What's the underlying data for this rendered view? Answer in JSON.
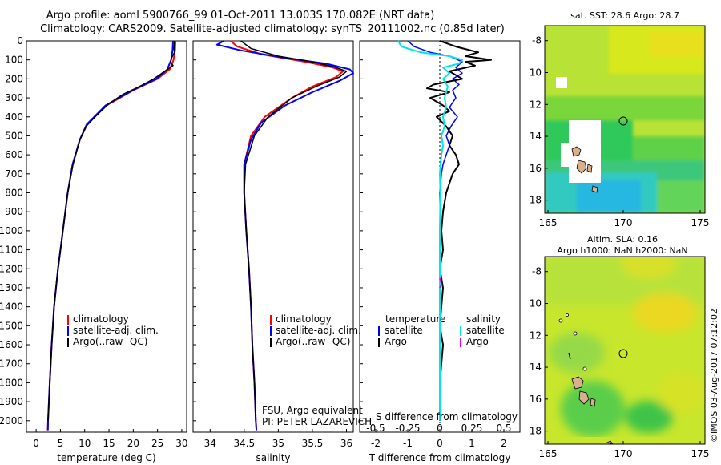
{
  "title": {
    "line1": "Argo profile: aoml 5900766_99 01-Oct-2011 13.003S 170.082E (NRT data)",
    "line2": "Climatology: CARS2009. Satellite-adjusted climatology: synTS_20111002.nc (0.85d later)"
  },
  "pressure_ticks": [
    0,
    100,
    200,
    300,
    400,
    500,
    600,
    700,
    800,
    900,
    1000,
    1100,
    1200,
    1300,
    1400,
    1500,
    1600,
    1700,
    1800,
    1900,
    2000
  ],
  "colors": {
    "climatology": "#ff0000",
    "satellite": "#0000ff",
    "argo": "#000000",
    "sat_diff_s": "#00e6e6",
    "argo_diff_s": "#e600e6"
  },
  "chart_data": [
    {
      "type": "line",
      "id": "temperature",
      "xlabel": "temperature (deg C)",
      "ylabel": "",
      "xlim": [
        -2,
        31
      ],
      "ylim": [
        2060,
        0
      ],
      "xticks": [
        0,
        5,
        10,
        15,
        20,
        25,
        30
      ],
      "xtick_labels": [
        "0",
        "5",
        "10",
        "15",
        "20",
        "25",
        "30"
      ],
      "legend": [
        "climatology",
        "satellite-adj. clim.",
        "Argo(..raw -QC)"
      ],
      "series": [
        {
          "name": "climatology",
          "color": "#ff0000",
          "width": 2,
          "points": [
            [
              28.7,
              0
            ],
            [
              28.6,
              50
            ],
            [
              28.3,
              100
            ],
            [
              27.5,
              150
            ],
            [
              25,
              200
            ],
            [
              20,
              260
            ],
            [
              14.5,
              340
            ],
            [
              10.5,
              440
            ],
            [
              9,
              520
            ],
            [
              7.5,
              650
            ],
            [
              6.5,
              800
            ],
            [
              5.5,
              1000
            ],
            [
              4.5,
              1200
            ],
            [
              3.7,
              1400
            ],
            [
              3.2,
              1600
            ],
            [
              2.8,
              1800
            ],
            [
              2.45,
              2000
            ],
            [
              2.4,
              2050
            ]
          ]
        },
        {
          "name": "satellite-adj. clim.",
          "color": "#0000ff",
          "width": 2,
          "points": [
            [
              28.2,
              0
            ],
            [
              28.1,
              50
            ],
            [
              27.8,
              100
            ],
            [
              27,
              150
            ],
            [
              24.8,
              200
            ],
            [
              19.8,
              260
            ],
            [
              14.3,
              340
            ],
            [
              10.4,
              440
            ],
            [
              9,
              520
            ],
            [
              7.5,
              650
            ],
            [
              6.5,
              800
            ],
            [
              5.5,
              1000
            ],
            [
              4.5,
              1200
            ],
            [
              3.7,
              1400
            ],
            [
              3.2,
              1600
            ],
            [
              2.8,
              1800
            ],
            [
              2.45,
              2000
            ],
            [
              2.4,
              2050
            ]
          ]
        },
        {
          "name": "Argo(..raw -QC)",
          "color": "#000000",
          "width": 1.5,
          "points": [
            [
              28.5,
              0
            ],
            [
              28.4,
              40
            ],
            [
              28.5,
              60
            ],
            [
              27.9,
              90
            ],
            [
              27.7,
              110
            ],
            [
              28.2,
              130
            ],
            [
              26.5,
              160
            ],
            [
              24.2,
              200
            ],
            [
              22,
              230
            ],
            [
              20.5,
              250
            ],
            [
              18,
              280
            ],
            [
              15,
              330
            ],
            [
              12.5,
              390
            ],
            [
              10.3,
              450
            ],
            [
              9,
              520
            ],
            [
              7.6,
              650
            ],
            [
              6.5,
              800
            ],
            [
              5.5,
              1000
            ],
            [
              4.5,
              1200
            ],
            [
              3.7,
              1400
            ],
            [
              3.2,
              1600
            ],
            [
              2.8,
              1800
            ],
            [
              2.45,
              2000
            ]
          ]
        }
      ]
    },
    {
      "type": "line",
      "id": "salinity",
      "xlabel": "salinity",
      "ylabel": "",
      "xlim": [
        33.75,
        36.1
      ],
      "ylim": [
        2060,
        0
      ],
      "xticks": [
        34,
        34.5,
        35,
        35.5,
        36
      ],
      "xtick_labels": [
        "34",
        "34.5",
        "35",
        "35.5",
        "36"
      ],
      "legend": [
        "climatology",
        "satellite-adj. clim.",
        "Argo(..raw -QC)"
      ],
      "series": [
        {
          "name": "climatology",
          "color": "#ff0000",
          "width": 2,
          "points": [
            [
              34.3,
              0
            ],
            [
              34.4,
              30
            ],
            [
              34.75,
              70
            ],
            [
              35.4,
              110
            ],
            [
              35.8,
              140
            ],
            [
              35.95,
              160
            ],
            [
              35.85,
              190
            ],
            [
              35.5,
              240
            ],
            [
              35.2,
              300
            ],
            [
              34.8,
              400
            ],
            [
              34.6,
              500
            ],
            [
              34.5,
              650
            ],
            [
              34.5,
              800
            ],
            [
              34.53,
              1000
            ],
            [
              34.57,
              1200
            ],
            [
              34.6,
              1400
            ],
            [
              34.62,
              1600
            ],
            [
              34.65,
              1800
            ],
            [
              34.67,
              2000
            ],
            [
              34.68,
              2050
            ]
          ]
        },
        {
          "name": "satellite-adj. clim.",
          "color": "#0000ff",
          "width": 2,
          "points": [
            [
              34.2,
              0
            ],
            [
              34.1,
              20
            ],
            [
              34.45,
              50
            ],
            [
              35.1,
              90
            ],
            [
              35.7,
              120
            ],
            [
              36.05,
              150
            ],
            [
              36.1,
              170
            ],
            [
              35.9,
              210
            ],
            [
              35.5,
              270
            ],
            [
              35.1,
              340
            ],
            [
              34.75,
              430
            ],
            [
              34.6,
              520
            ],
            [
              34.5,
              650
            ],
            [
              34.5,
              800
            ],
            [
              34.53,
              1000
            ],
            [
              34.57,
              1200
            ],
            [
              34.6,
              1400
            ],
            [
              34.62,
              1600
            ],
            [
              34.65,
              1800
            ],
            [
              34.67,
              2000
            ],
            [
              34.68,
              2050
            ]
          ]
        },
        {
          "name": "Argo(..raw -QC)",
          "color": "#000000",
          "width": 1.5,
          "points": [
            [
              34.45,
              0
            ],
            [
              34.6,
              40
            ],
            [
              35,
              80
            ],
            [
              35.5,
              110
            ],
            [
              35.85,
              140
            ],
            [
              36,
              160
            ],
            [
              35.9,
              190
            ],
            [
              35.55,
              240
            ],
            [
              35.2,
              300
            ],
            [
              34.85,
              400
            ],
            [
              34.65,
              500
            ],
            [
              34.52,
              650
            ],
            [
              34.5,
              800
            ],
            [
              34.53,
              1000
            ],
            [
              34.57,
              1200
            ],
            [
              34.6,
              1400
            ],
            [
              34.62,
              1600
            ],
            [
              34.65,
              1800
            ],
            [
              34.67,
              2000
            ]
          ]
        }
      ]
    },
    {
      "type": "line",
      "id": "difference",
      "xlabel": "T difference from climatology",
      "top_label": "S difference from climatology",
      "xlim": [
        -2.5,
        2.5
      ],
      "ylim": [
        2060,
        0
      ],
      "t_xticks": [
        -2,
        -1,
        0,
        1,
        2
      ],
      "t_xtick_labels": [
        "-2",
        "-1",
        "0",
        "1",
        "2"
      ],
      "s_xticks": [
        -0.5,
        -0.25,
        0,
        0.25,
        0.5
      ],
      "s_xtick_labels": [
        "-0.5",
        "-0.25",
        "0",
        "0.25",
        "0.5"
      ],
      "legend_headers": [
        "temperature",
        "salinity"
      ],
      "legend_t": [
        "satellite",
        "Argo"
      ],
      "legend_s": [
        "satellite",
        "Argo"
      ],
      "series": [
        {
          "name": "temperature satellite",
          "color": "#0000ff",
          "width": 1.5,
          "points": [
            [
              -1,
              0
            ],
            [
              -0.8,
              30
            ],
            [
              -0.3,
              60
            ],
            [
              0.3,
              80
            ],
            [
              0.7,
              110
            ],
            [
              0.5,
              140
            ],
            [
              0.7,
              170
            ],
            [
              0.4,
              200
            ],
            [
              0.6,
              230
            ],
            [
              0.4,
              260
            ],
            [
              0.5,
              300
            ],
            [
              0.3,
              350
            ],
            [
              0.55,
              400
            ],
            [
              0.35,
              450
            ],
            [
              0.2,
              500
            ],
            [
              0.3,
              550
            ],
            [
              0.2,
              600
            ],
            [
              0.1,
              650
            ],
            [
              0.05,
              700
            ],
            [
              0,
              800
            ],
            [
              0.02,
              1000
            ],
            [
              0,
              1200
            ],
            [
              0.02,
              1400
            ],
            [
              0,
              1600
            ],
            [
              0,
              1800
            ],
            [
              0,
              2000
            ]
          ]
        },
        {
          "name": "temperature Argo",
          "color": "#000000",
          "width": 2,
          "points": [
            [
              0,
              0
            ],
            [
              0.5,
              30
            ],
            [
              1.2,
              60
            ],
            [
              0.8,
              80
            ],
            [
              1.6,
              100
            ],
            [
              0.8,
              110
            ],
            [
              1.1,
              130
            ],
            [
              0.3,
              160
            ],
            [
              0.7,
              200
            ],
            [
              -0.2,
              230
            ],
            [
              -0.4,
              250
            ],
            [
              0.3,
              270
            ],
            [
              -0.3,
              300
            ],
            [
              0.1,
              340
            ],
            [
              0.3,
              370
            ],
            [
              -0.1,
              400
            ],
            [
              0.2,
              450
            ],
            [
              0.4,
              500
            ],
            [
              0.3,
              550
            ],
            [
              0.5,
              600
            ],
            [
              0.6,
              650
            ],
            [
              0.4,
              700
            ],
            [
              0.2,
              800
            ],
            [
              0.1,
              900
            ],
            [
              0.05,
              1000
            ],
            [
              0.1,
              1100
            ],
            [
              0,
              1200
            ],
            [
              0.1,
              1300
            ],
            [
              0.05,
              1400
            ],
            [
              0,
              1500
            ],
            [
              0.1,
              1600
            ],
            [
              0.05,
              1700
            ],
            [
              0,
              1800
            ],
            [
              0.02,
              1900
            ],
            [
              0,
              2000
            ]
          ]
        },
        {
          "name": "salinity satellite",
          "color": "#00e6e6",
          "width": 2,
          "points": [
            [
              -1.3,
              0
            ],
            [
              -1.2,
              30
            ],
            [
              -0.6,
              60
            ],
            [
              0.3,
              80
            ],
            [
              0.7,
              100
            ],
            [
              0.6,
              120
            ],
            [
              0.1,
              140
            ],
            [
              0.3,
              170
            ],
            [
              0.1,
              200
            ],
            [
              0.25,
              240
            ],
            [
              0.15,
              300
            ],
            [
              0.2,
              350
            ],
            [
              0.1,
              400
            ],
            [
              0.15,
              450
            ],
            [
              0.05,
              500
            ],
            [
              0.1,
              550
            ],
            [
              0.05,
              600
            ],
            [
              0,
              700
            ],
            [
              0.02,
              800
            ],
            [
              0,
              1000
            ],
            [
              0,
              1200
            ],
            [
              0,
              1400
            ],
            [
              0,
              1600
            ],
            [
              0,
              1800
            ],
            [
              0,
              2000
            ]
          ]
        },
        {
          "name": "salinity Argo",
          "color": "#e600e6",
          "width": 1.5,
          "points": [
            [
              0,
              1250
            ],
            [
              0.05,
              1280
            ],
            [
              0,
              1300
            ]
          ]
        }
      ]
    }
  ],
  "footer": {
    "institution": "FSU, Argo equivalent",
    "pi": "PI: PETER LAZAREVICH"
  },
  "maps": {
    "sst": {
      "title": "sat. SST: 28.6  Argo: 28.7",
      "yticks": [
        "-8",
        "-10",
        "-12",
        "-14",
        "-16",
        "-18"
      ],
      "xticks": [
        "165",
        "170",
        "175"
      ]
    },
    "sla": {
      "title1": "Altim. SLA: 0.16",
      "title2": "Argo h1000: NaN  h2000: NaN",
      "yticks": [
        "-8",
        "-10",
        "-12",
        "-14",
        "-16",
        "-18"
      ],
      "xticks": [
        "165",
        "170",
        "175"
      ]
    }
  },
  "stamp": "©IMOS 03-Aug-2017 07:12:02"
}
